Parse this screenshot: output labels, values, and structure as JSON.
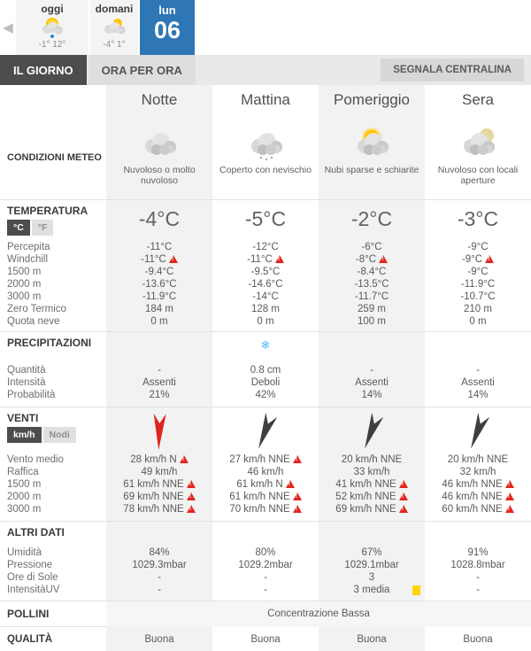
{
  "colors": {
    "accent_blue": "#2e76b4",
    "active_tab_dark": "#4d4d4d",
    "warning_red": "#e2261d",
    "uv_yellow": "#ffd600",
    "snow_blue": "#55b9f3",
    "wind_red": "#e0251b",
    "wind_dark": "#3d4043",
    "shaded_column": "#f2f2f2"
  },
  "header": {
    "day_tabs": [
      {
        "label": "oggi",
        "temps": "-1° 12°",
        "icon": "sun-cloud-rain"
      },
      {
        "label": "domani",
        "temps": "-4° 1°",
        "icon": "cloud-sun"
      }
    ],
    "selected_day": {
      "weekday": "lun",
      "day": "06"
    }
  },
  "tabs": {
    "il_giorno": "IL GIORNO",
    "ora_per_ora": "ORA PER ORA",
    "segnala": "SEGNALA CENTRALINA"
  },
  "columns": [
    "Notte",
    "Mattina",
    "Pomeriggio",
    "Sera"
  ],
  "conditions": {
    "title": "CONDIZIONI METEO",
    "cells": [
      {
        "icon": "clouds",
        "desc": "Nuvoloso o molto nuvoloso"
      },
      {
        "icon": "clouds-snow",
        "desc": "Coperto con nevischio"
      },
      {
        "icon": "sun-clouds",
        "desc": "Nubi sparse e schiarite"
      },
      {
        "icon": "clouds-hazy-sun",
        "desc": "Nuvoloso con locali aperture"
      }
    ]
  },
  "temperature": {
    "title": "TEMPERATURA",
    "unit_c": "°C",
    "unit_f": "°F",
    "main": [
      "-4°C",
      "-5°C",
      "-2°C",
      "-3°C"
    ],
    "rows": [
      {
        "label": "Percepita",
        "values": [
          "-11°C",
          "-12°C",
          "-6°C",
          "-9°C"
        ],
        "warn": [
          false,
          false,
          false,
          false
        ]
      },
      {
        "label": "Windchill",
        "values": [
          "-11°C",
          "-11°C",
          "-8°C",
          "-9°C"
        ],
        "warn": [
          true,
          true,
          true,
          true
        ]
      },
      {
        "label": "1500 m",
        "values": [
          "-9.4°C",
          "-9.5°C",
          "-8.4°C",
          "-9°C"
        ],
        "warn": [
          false,
          false,
          false,
          false
        ]
      },
      {
        "label": "2000 m",
        "values": [
          "-13.6°C",
          "-14.6°C",
          "-13.5°C",
          "-11.9°C"
        ],
        "warn": [
          false,
          false,
          false,
          false
        ]
      },
      {
        "label": "3000 m",
        "values": [
          "-11.9°C",
          "-14°C",
          "-11.7°C",
          "-10.7°C"
        ],
        "warn": [
          false,
          false,
          false,
          false
        ]
      },
      {
        "label": "Zero Termico",
        "values": [
          "184 m",
          "128 m",
          "259 m",
          "210 m"
        ],
        "warn": [
          false,
          false,
          false,
          false
        ]
      },
      {
        "label": "Quota neve",
        "values": [
          "0 m",
          "0 m",
          "100 m",
          "0 m"
        ],
        "warn": [
          false,
          false,
          false,
          false
        ]
      }
    ]
  },
  "precipitation": {
    "title": "PRECIPITAZIONI",
    "icons": [
      "",
      "snowflake",
      "",
      ""
    ],
    "snowflake_glyph": "❄",
    "rows": [
      {
        "label": "Quantità",
        "values": [
          "-",
          "0.8 cm",
          "-",
          "-"
        ]
      },
      {
        "label": "Intensità",
        "values": [
          "Assenti",
          "Deboli",
          "Assenti",
          "Assenti"
        ]
      },
      {
        "label": "Probabilità",
        "values": [
          "21%",
          "42%",
          "14%",
          "14%"
        ]
      }
    ]
  },
  "wind": {
    "title": "VENTI",
    "unit_kmh": "km/h",
    "unit_knots": "Nodi",
    "arrows": [
      {
        "dir": "N",
        "color": "#e0251b"
      },
      {
        "dir": "NNE",
        "color": "#3d4043"
      },
      {
        "dir": "NNE",
        "color": "#3d4043"
      },
      {
        "dir": "NNE",
        "color": "#3d4043"
      }
    ],
    "rows": [
      {
        "label": "Vento medio",
        "values": [
          "28 km/h N",
          "27 km/h NNE",
          "20 km/h NNE",
          "20 km/h NNE"
        ],
        "warn": [
          true,
          true,
          false,
          false
        ]
      },
      {
        "label": "Raffica",
        "values": [
          "49 km/h",
          "46 km/h",
          "33 km/h",
          "32 km/h"
        ],
        "warn": [
          false,
          false,
          false,
          false
        ]
      },
      {
        "label": "1500 m",
        "values": [
          "61 km/h NNE",
          "61 km/h N",
          "41 km/h NNE",
          "46 km/h NNE"
        ],
        "warn": [
          true,
          true,
          true,
          true
        ]
      },
      {
        "label": "2000 m",
        "values": [
          "69 km/h NNE",
          "61 km/h NNE",
          "52 km/h NNE",
          "46 km/h NNE"
        ],
        "warn": [
          true,
          true,
          true,
          true
        ]
      },
      {
        "label": "3000 m",
        "values": [
          "78 km/h NNE",
          "70 km/h NNE",
          "69 km/h NNE",
          "60 km/h NNE"
        ],
        "warn": [
          true,
          true,
          true,
          true
        ]
      }
    ]
  },
  "other_data": {
    "title": "ALTRI DATI",
    "rows": [
      {
        "label": "Umidità",
        "values": [
          "84%",
          "80%",
          "67%",
          "91%"
        ]
      },
      {
        "label": "Pressione",
        "values": [
          "1029.3mbar",
          "1029.2mbar",
          "1029.1mbar",
          "1028.8mbar"
        ]
      },
      {
        "label": "Ore di Sole",
        "values": [
          "-",
          "-",
          "3",
          "-"
        ]
      },
      {
        "label": "IntensitàUV",
        "values": [
          "-",
          "-",
          "3 media",
          "-"
        ],
        "uv_badge_col": 2
      }
    ]
  },
  "pollini": {
    "title": "POLLINI",
    "value": "Concentrazione Bassa"
  },
  "air_quality": {
    "title": "QUALITÀ DELL'ARIA",
    "values": [
      "Buona",
      "Buona",
      "Buona",
      "Buona"
    ]
  }
}
